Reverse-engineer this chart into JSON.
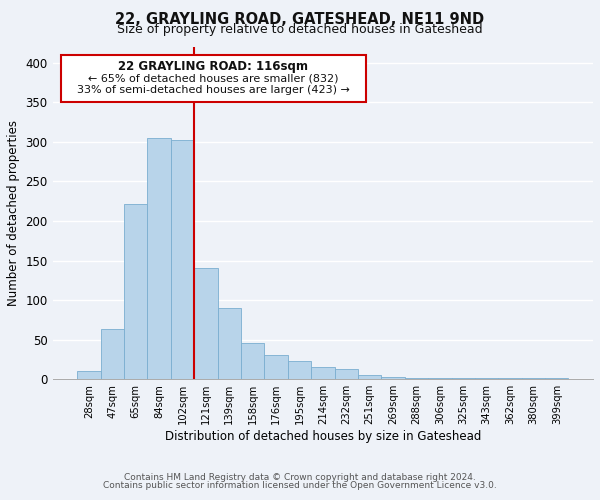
{
  "title": "22, GRAYLING ROAD, GATESHEAD, NE11 9ND",
  "subtitle": "Size of property relative to detached houses in Gateshead",
  "xlabel": "Distribution of detached houses by size in Gateshead",
  "ylabel": "Number of detached properties",
  "bar_labels": [
    "28sqm",
    "47sqm",
    "65sqm",
    "84sqm",
    "102sqm",
    "121sqm",
    "139sqm",
    "158sqm",
    "176sqm",
    "195sqm",
    "214sqm",
    "232sqm",
    "251sqm",
    "269sqm",
    "288sqm",
    "306sqm",
    "325sqm",
    "343sqm",
    "362sqm",
    "380sqm",
    "399sqm"
  ],
  "bar_values": [
    10,
    64,
    222,
    305,
    303,
    140,
    90,
    46,
    31,
    23,
    16,
    13,
    5,
    3,
    2,
    1,
    1,
    1,
    1,
    1,
    1
  ],
  "bar_color": "#b8d4ea",
  "bar_edge_color": "#7aaed0",
  "vline_color": "#cc0000",
  "ylim": [
    0,
    420
  ],
  "yticks": [
    0,
    50,
    100,
    150,
    200,
    250,
    300,
    350,
    400
  ],
  "annotation_title": "22 GRAYLING ROAD: 116sqm",
  "annotation_line1": "← 65% of detached houses are smaller (832)",
  "annotation_line2": "33% of semi-detached houses are larger (423) →",
  "annotation_box_color": "#ffffff",
  "annotation_box_edge": "#cc0000",
  "footer_line1": "Contains HM Land Registry data © Crown copyright and database right 2024.",
  "footer_line2": "Contains public sector information licensed under the Open Government Licence v3.0.",
  "bg_color": "#eef2f8",
  "grid_color": "#ffffff"
}
